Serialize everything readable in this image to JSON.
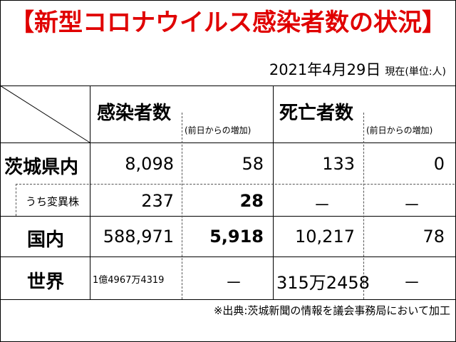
{
  "title": "【新型コロナウイルス感染者数の状況】",
  "date": "2021年4月29日",
  "date_suffix": "現在(単位:人)",
  "headers": {
    "infected": "感染者数",
    "infected_increase": "(前日からの増加)",
    "deaths": "死亡者数",
    "deaths_increase": "(前日からの増加)"
  },
  "rows": [
    {
      "label": "茨城県内",
      "infected": "8,098",
      "infected_increase": "58",
      "deaths": "133",
      "deaths_increase": "0"
    },
    {
      "label": "うち変異株",
      "infected": "237",
      "infected_increase": "28",
      "deaths": "－",
      "deaths_increase": "－"
    },
    {
      "label": "国内",
      "infected": "588,971",
      "infected_increase": "5,918",
      "deaths": "10,217",
      "deaths_increase": "78"
    },
    {
      "label": "世界",
      "infected": "1億4967万4319",
      "infected_increase": "－",
      "deaths": "315万2458",
      "deaths_increase": "－"
    }
  ],
  "footer": "※出典:茨城新聞の情報を議会事務局において加工"
}
